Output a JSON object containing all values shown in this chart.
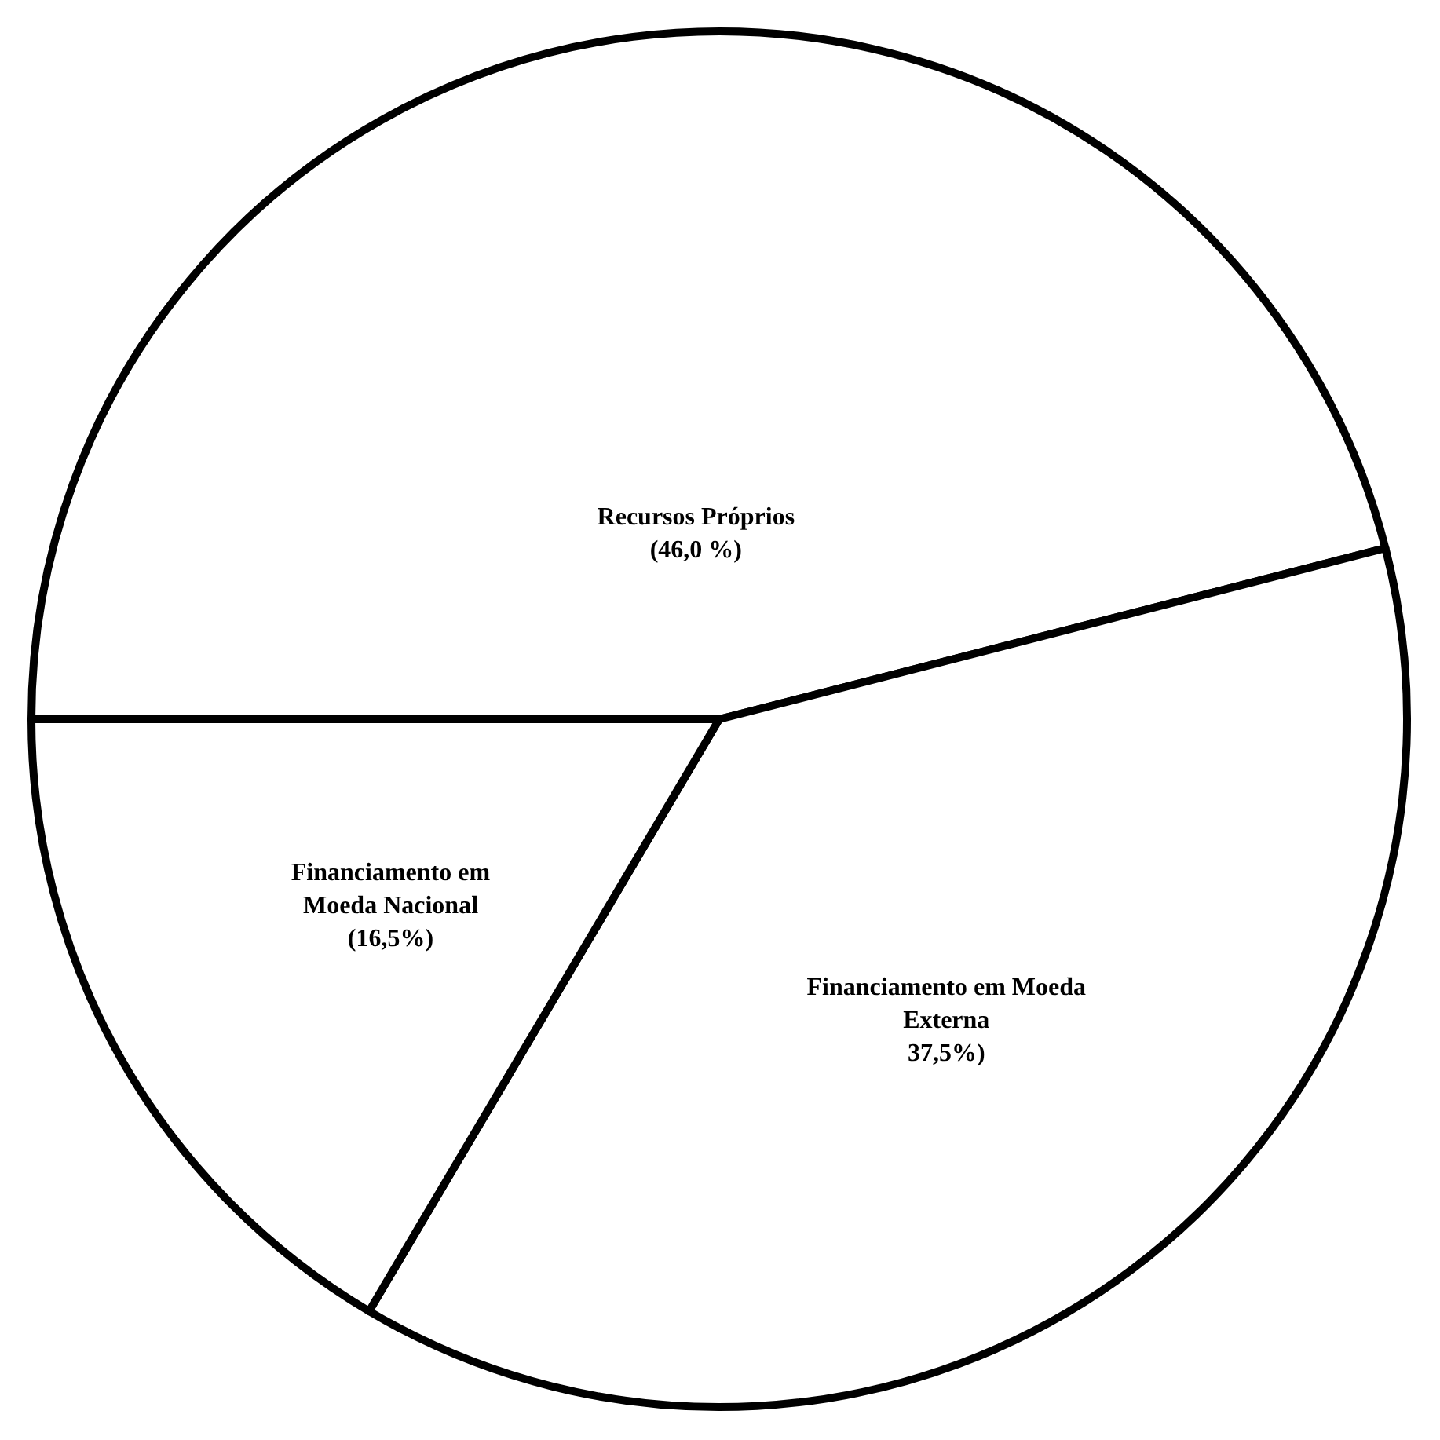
{
  "chart_data": {
    "type": "pie",
    "categories": [
      "Recursos Próprios",
      "Financiamento em Moeda Externa",
      "Financiamento em Moeda Nacional"
    ],
    "values": [
      46.0,
      37.5,
      16.5
    ],
    "colors": [
      "#ffffff",
      "#ffffff",
      "#ffffff"
    ],
    "value_labels": [
      "(46,0 %)",
      "37,5%)",
      "(16,5%)"
    ]
  }
}
